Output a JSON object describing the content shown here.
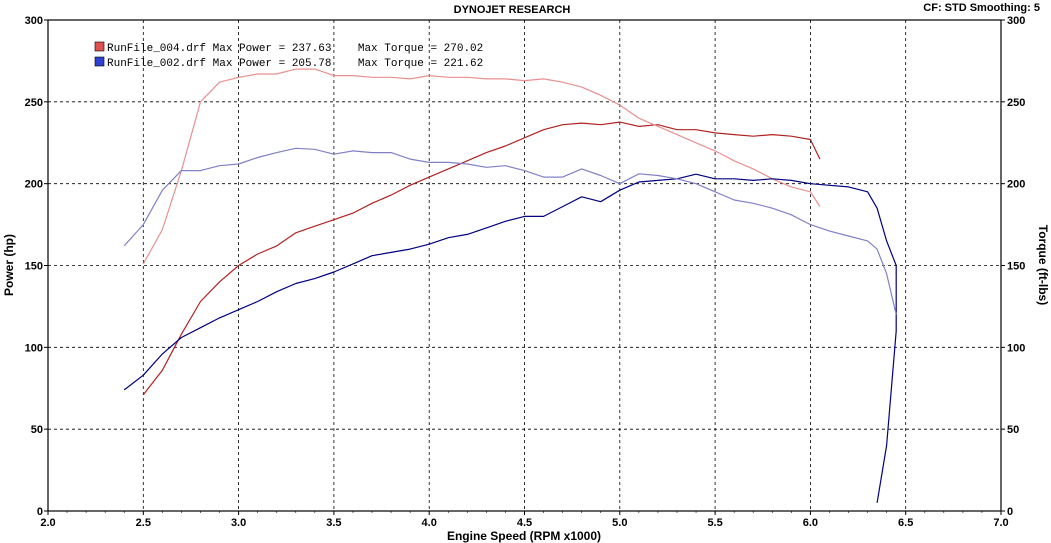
{
  "header": {
    "title": "DYNOJET RESEARCH",
    "cf_info": "CF: STD  Smoothing: 5"
  },
  "colors": {
    "run1_power": "#b22222",
    "run1_torque": "#e89090",
    "run2_power": "#000080",
    "run2_torque": "#8080c8"
  },
  "chart_data": {
    "type": "line",
    "title": "DYNOJET RESEARCH",
    "xlabel": "Engine Speed (RPM x1000)",
    "ylabel": "Power (hp)",
    "y2label": "Torque (ft-lbs)",
    "xlim": [
      2.0,
      7.0
    ],
    "ylim": [
      0,
      300
    ],
    "y2lim": [
      0,
      300
    ],
    "x_ticks": [
      "2.0",
      "2.5",
      "3.0",
      "3.5",
      "4.0",
      "4.5",
      "5.0",
      "5.5",
      "6.0",
      "6.5",
      "7.0"
    ],
    "y_ticks": [
      "0",
      "50",
      "100",
      "150",
      "200",
      "250",
      "300"
    ],
    "grid": true,
    "legend": [
      {
        "label": "RunFile_004.drf Max Power = 237.63    Max Torque = 270.02",
        "color": "#e05050"
      },
      {
        "label": "RunFile_002.drf Max Power = 205.78    Max Torque = 221.62",
        "color": "#3040d0"
      }
    ],
    "series": [
      {
        "color": "#b22222",
        "x": [
          2.5,
          2.6,
          2.7,
          2.8,
          2.9,
          3.0,
          3.1,
          3.2,
          3.3,
          3.4,
          3.5,
          3.6,
          3.7,
          3.8,
          3.9,
          4.0,
          4.1,
          4.2,
          4.3,
          4.4,
          4.5,
          4.6,
          4.7,
          4.8,
          4.9,
          5.0,
          5.1,
          5.2,
          5.3,
          5.4,
          5.5,
          5.6,
          5.7,
          5.8,
          5.9,
          6.0,
          6.05
        ],
        "values": [
          71,
          86,
          108,
          128,
          140,
          150,
          157,
          162,
          170,
          174,
          178,
          182,
          188,
          193,
          199,
          204,
          209,
          214,
          219,
          223,
          228,
          233,
          236,
          237,
          236,
          237.63,
          235,
          236,
          233,
          233,
          231,
          230,
          229,
          230,
          229,
          227,
          215
        ]
      },
      {
        "color": "#e89090",
        "x": [
          2.5,
          2.6,
          2.7,
          2.8,
          2.9,
          3.0,
          3.1,
          3.2,
          3.3,
          3.4,
          3.5,
          3.6,
          3.7,
          3.8,
          3.9,
          4.0,
          4.1,
          4.2,
          4.3,
          4.4,
          4.5,
          4.6,
          4.7,
          4.8,
          4.9,
          5.0,
          5.1,
          5.2,
          5.3,
          5.4,
          5.5,
          5.6,
          5.7,
          5.8,
          5.9,
          6.0,
          6.05
        ],
        "values": [
          151,
          172,
          208,
          250,
          262,
          265,
          267,
          267,
          270,
          270.02,
          266,
          266,
          265,
          265,
          264,
          266,
          265,
          265,
          264,
          264,
          263,
          264,
          262,
          259,
          254,
          248,
          240,
          235,
          230,
          225,
          220,
          214,
          209,
          203,
          198,
          195,
          186
        ]
      },
      {
        "color": "#000080",
        "x": [
          2.4,
          2.5,
          2.6,
          2.7,
          2.8,
          2.9,
          3.0,
          3.1,
          3.2,
          3.3,
          3.4,
          3.5,
          3.6,
          3.7,
          3.8,
          3.9,
          4.0,
          4.1,
          4.2,
          4.3,
          4.4,
          4.5,
          4.6,
          4.7,
          4.8,
          4.9,
          5.0,
          5.1,
          5.2,
          5.3,
          5.4,
          5.5,
          5.6,
          5.7,
          5.8,
          5.9,
          6.0,
          6.1,
          6.2,
          6.3,
          6.35,
          6.4,
          6.45,
          6.45,
          6.4,
          6.35
        ],
        "values": [
          74,
          83,
          96,
          106,
          112,
          118,
          123,
          128,
          134,
          139,
          142,
          146,
          151,
          156,
          158,
          160,
          163,
          167,
          169,
          173,
          177,
          180,
          180,
          186,
          192,
          189,
          196,
          201,
          202,
          203,
          205.78,
          203,
          203,
          202,
          203,
          202,
          200,
          199,
          198,
          195,
          185,
          165,
          150,
          110,
          40,
          5
        ]
      },
      {
        "color": "#8080c8",
        "x": [
          2.4,
          2.5,
          2.6,
          2.7,
          2.8,
          2.9,
          3.0,
          3.1,
          3.2,
          3.3,
          3.4,
          3.5,
          3.6,
          3.7,
          3.8,
          3.9,
          4.0,
          4.1,
          4.2,
          4.3,
          4.4,
          4.5,
          4.6,
          4.7,
          4.8,
          4.9,
          5.0,
          5.1,
          5.2,
          5.3,
          5.4,
          5.5,
          5.6,
          5.7,
          5.8,
          5.9,
          6.0,
          6.1,
          6.2,
          6.3,
          6.35,
          6.4,
          6.45
        ],
        "values": [
          162,
          175,
          196,
          208,
          208,
          211,
          212,
          216,
          219,
          221.62,
          221,
          218,
          220,
          219,
          219,
          215,
          213,
          213,
          212,
          210,
          211,
          208,
          204,
          204,
          209,
          205,
          200,
          206,
          205,
          203,
          200,
          195,
          190,
          188,
          185,
          181,
          175,
          171,
          168,
          165,
          160,
          145,
          120
        ]
      }
    ]
  }
}
